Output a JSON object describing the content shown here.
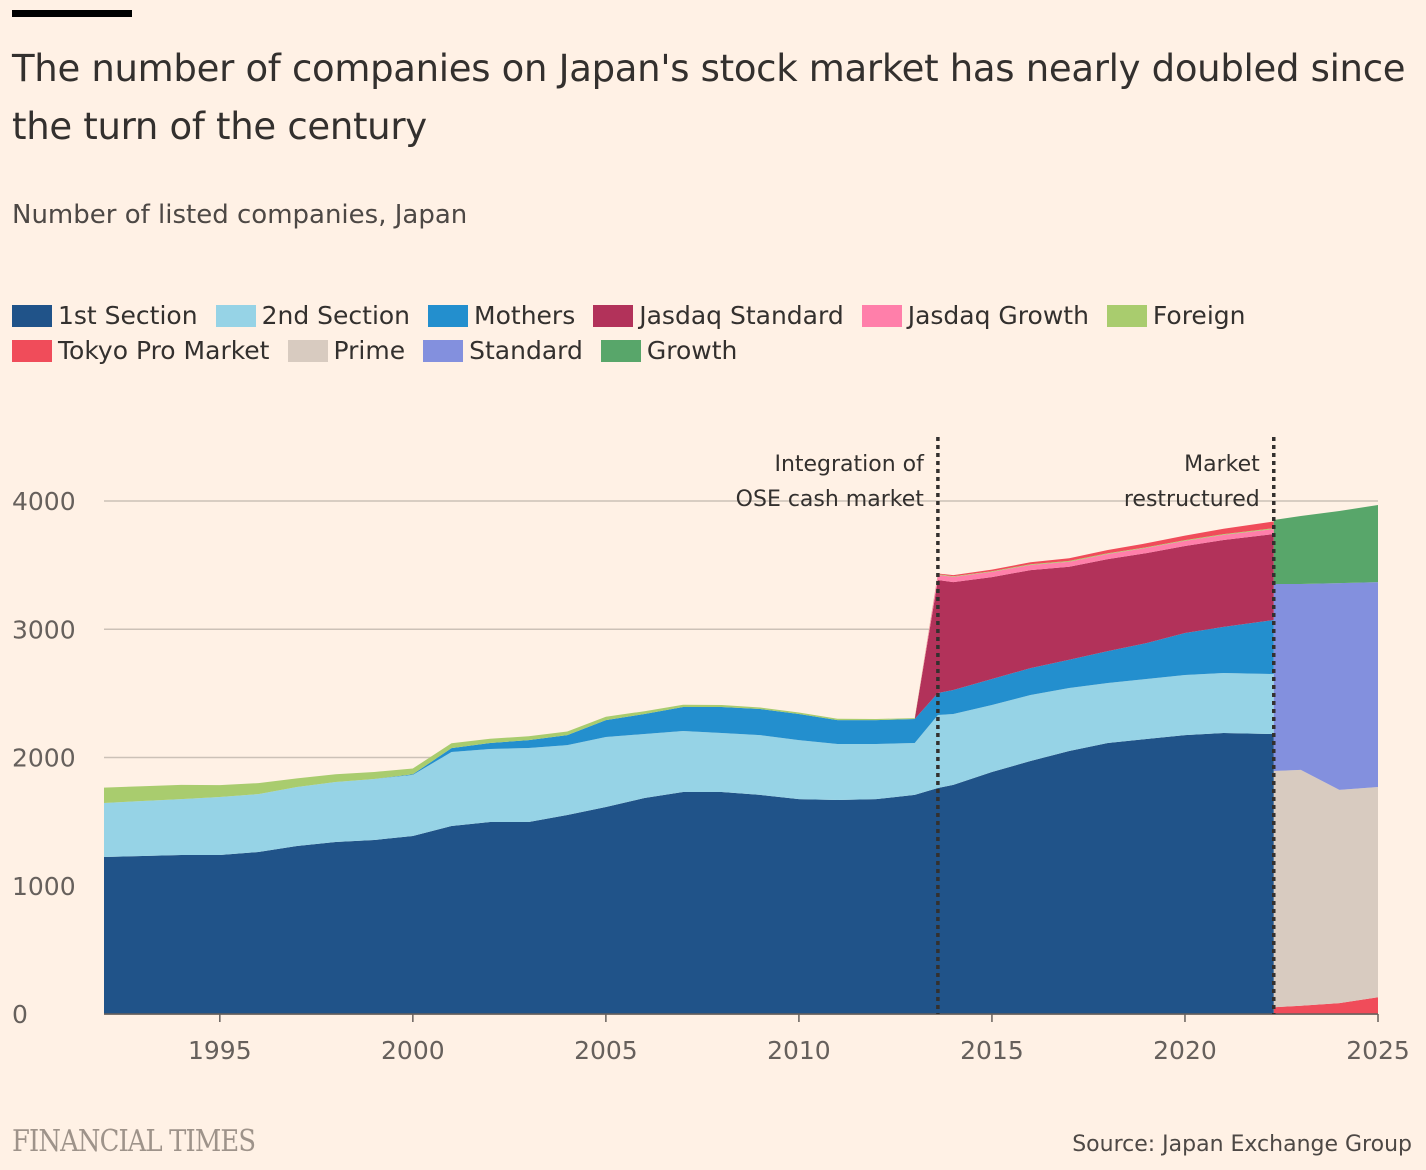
{
  "title": "The number of companies on Japan's stock market has nearly doubled since the turn of the century",
  "subtitle": "Number of listed companies, Japan",
  "source": "Source: Japan Exchange Group",
  "brand": "FINANCIAL TIMES",
  "chart_data": {
    "type": "area",
    "stacked": true,
    "title": "The number of companies on Japan's stock market has nearly doubled since the turn of the century",
    "ylabel": "Number of listed companies, Japan",
    "xlim": [
      1992,
      2025
    ],
    "ylim": [
      0,
      4000
    ],
    "yticks": [
      0,
      1000,
      2000,
      3000,
      4000
    ],
    "xticks": [
      1995,
      2000,
      2005,
      2010,
      2015,
      2020,
      2025
    ],
    "grid": true,
    "legend_position": "top-left",
    "x": [
      1992,
      1993,
      1994,
      1995,
      1996,
      1997,
      1998,
      1999,
      2000,
      2001,
      2002,
      2003,
      2004,
      2005,
      2006,
      2007,
      2008,
      2009,
      2010,
      2011,
      2012,
      2013,
      2013.6,
      2014,
      2015,
      2016,
      2017,
      2018,
      2019,
      2020,
      2021,
      2022.3,
      2022.3,
      2023,
      2024,
      2025
    ],
    "series": [
      {
        "name": "1st Section",
        "color": "#205389",
        "values": [
          1224,
          1232,
          1240,
          1240,
          1263,
          1310,
          1341,
          1357,
          1388,
          1466,
          1497,
          1497,
          1552,
          1614,
          1684,
          1731,
          1731,
          1708,
          1676,
          1669,
          1676,
          1708,
          1762,
          1786,
          1887,
          1973,
          2051,
          2113,
          2144,
          2175,
          2191,
          2183,
          0,
          0,
          0,
          0
        ]
      },
      {
        "name": "2nd Section",
        "color": "#96d3e6",
        "values": [
          421,
          429,
          436,
          452,
          452,
          460,
          468,
          475,
          476,
          577,
          569,
          577,
          545,
          546,
          499,
          476,
          460,
          467,
          460,
          436,
          429,
          405,
          569,
          553,
          522,
          514,
          491,
          468,
          468,
          468,
          468,
          468,
          0,
          0,
          0,
          0
        ]
      },
      {
        "name": "Mothers",
        "color": "#238fce",
        "values": [
          0,
          0,
          0,
          0,
          0,
          0,
          0,
          0,
          5,
          30,
          47,
          62,
          78,
          132,
          156,
          187,
          203,
          203,
          203,
          187,
          187,
          187,
          172,
          187,
          203,
          210,
          220,
          249,
          280,
          328,
          359,
          421,
          0,
          0,
          0,
          0
        ]
      },
      {
        "name": "Jasdaq Standard",
        "color": "#b2325a",
        "values": [
          0,
          0,
          0,
          0,
          0,
          0,
          0,
          0,
          0,
          0,
          0,
          0,
          0,
          0,
          0,
          0,
          0,
          0,
          0,
          0,
          0,
          0,
          881,
          842,
          795,
          764,
          725,
          717,
          702,
          678,
          678,
          670,
          0,
          0,
          0,
          0
        ]
      },
      {
        "name": "Jasdaq Growth",
        "color": "#ff7faa",
        "values": [
          0,
          0,
          0,
          0,
          0,
          0,
          0,
          0,
          0,
          0,
          0,
          0,
          0,
          0,
          0,
          0,
          0,
          0,
          0,
          0,
          0,
          0,
          40,
          40,
          40,
          40,
          40,
          40,
          40,
          40,
          40,
          40,
          0,
          0,
          0,
          0
        ]
      },
      {
        "name": "Foreign",
        "color": "#a9cc6e",
        "values": [
          120,
          115,
          110,
          93,
          85,
          67,
          60,
          55,
          45,
          38,
          33,
          30,
          28,
          25,
          22,
          18,
          15,
          12,
          12,
          10,
          8,
          7,
          6,
          6,
          6,
          6,
          6,
          6,
          6,
          6,
          6,
          6,
          0,
          0,
          0,
          0
        ]
      },
      {
        "name": "Tokyo Pro Market",
        "color": "#f04c5a",
        "values": [
          0,
          0,
          0,
          0,
          0,
          0,
          0,
          0,
          0,
          0,
          0,
          0,
          0,
          0,
          0,
          0,
          0,
          0,
          0,
          0,
          0,
          0,
          5,
          8,
          12,
          15,
          20,
          25,
          30,
          35,
          42,
          52,
          52,
          65,
          85,
          130
        ]
      },
      {
        "name": "Prime",
        "color": "#d8cbc0",
        "values": [
          0,
          0,
          0,
          0,
          0,
          0,
          0,
          0,
          0,
          0,
          0,
          0,
          0,
          0,
          0,
          0,
          0,
          0,
          0,
          0,
          0,
          0,
          0,
          0,
          0,
          0,
          0,
          0,
          0,
          0,
          0,
          0,
          1843,
          1838,
          1662,
          1640
        ]
      },
      {
        "name": "Standard",
        "color": "#8390de",
        "values": [
          0,
          0,
          0,
          0,
          0,
          0,
          0,
          0,
          0,
          0,
          0,
          0,
          0,
          0,
          0,
          0,
          0,
          0,
          0,
          0,
          0,
          0,
          0,
          0,
          0,
          0,
          0,
          0,
          0,
          0,
          0,
          0,
          1458,
          1450,
          1613,
          1598
        ]
      },
      {
        "name": "Growth",
        "color": "#58a66a",
        "values": [
          0,
          0,
          0,
          0,
          0,
          0,
          0,
          0,
          0,
          0,
          0,
          0,
          0,
          0,
          0,
          0,
          0,
          0,
          0,
          0,
          0,
          0,
          0,
          0,
          0,
          0,
          0,
          0,
          0,
          0,
          0,
          0,
          499,
          530,
          562,
          601
        ]
      }
    ],
    "annotations": [
      {
        "x": 2013.6,
        "lines": [
          "Integration of",
          "OSE cash market"
        ]
      },
      {
        "x": 2022.3,
        "lines": [
          "Market",
          "restructured"
        ]
      }
    ]
  }
}
